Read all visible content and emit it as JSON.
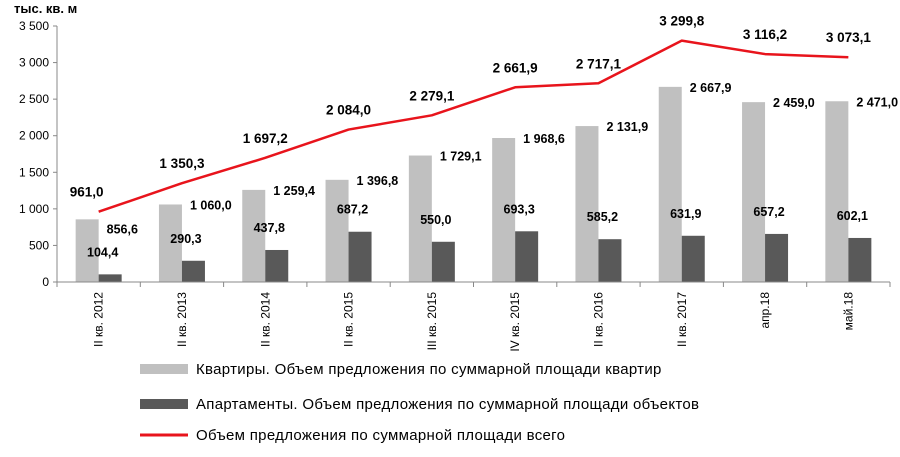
{
  "chart_data": {
    "type": "bar",
    "ylabel": "тыс. кв. м",
    "ylim": [
      0,
      3500
    ],
    "yticks": [
      "0",
      "500",
      "1 000",
      "1 500",
      "2 000",
      "2 500",
      "3 000",
      "3 500"
    ],
    "categories": [
      "II кв. 2012",
      "II кв. 2013",
      "II кв. 2014",
      "II кв. 2015",
      "III кв. 2015",
      "IV кв. 2015",
      "II кв. 2016",
      "II кв. 2017",
      "апр.18",
      "май.18"
    ],
    "series": [
      {
        "name": "Квартиры. Объем предложения  по суммарной площади квартир",
        "type": "bar",
        "color": "#c0c0c0",
        "values": [
          856.6,
          1060.0,
          1259.4,
          1396.8,
          1729.1,
          1968.6,
          2131.9,
          2667.9,
          2459.0,
          2471.0
        ],
        "labels": [
          "856,6",
          "1 060,0",
          "1 259,4",
          "1 396,8",
          "1 729,1",
          "1 968,6",
          "2 131,9",
          "2 667,9",
          "2 459,0",
          "2 471,0"
        ]
      },
      {
        "name": "Апартаменты. Объем предложения  по суммарной площади объектов",
        "type": "bar",
        "color": "#595959",
        "values": [
          104.4,
          290.3,
          437.8,
          687.2,
          550.0,
          693.3,
          585.2,
          631.9,
          657.2,
          602.1
        ],
        "labels": [
          "104,4",
          "290,3",
          "437,8",
          "687,2",
          "550,0",
          "693,3",
          "585,2",
          "631,9",
          "657,2",
          "602,1"
        ]
      },
      {
        "name": "Объем предложения  по суммарной площади всего",
        "type": "line",
        "color": "#e8141c",
        "values": [
          961.0,
          1350.3,
          1697.2,
          2084.0,
          2279.1,
          2661.9,
          2717.1,
          3299.8,
          3116.2,
          3073.1
        ],
        "labels": [
          "961,0",
          "1 350,3",
          "1 697,2",
          "2 084,0",
          "2 279,1",
          "2 661,9",
          "2 717,1",
          "3 299,8",
          "3 116,2",
          "3 073,1"
        ]
      }
    ],
    "grid": false,
    "legend_position": "bottom"
  }
}
